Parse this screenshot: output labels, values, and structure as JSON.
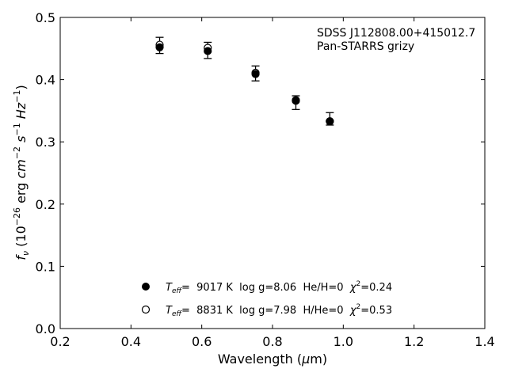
{
  "chart_data": {
    "type": "scatter",
    "xlabel": "Wavelength (μm)",
    "ylabel": "f_ν (10^-26 erg cm^-2 s^-1 Hz^-1)",
    "xlim": [
      0.2,
      1.4
    ],
    "ylim": [
      0.0,
      0.5
    ],
    "xticks": [
      "0.2",
      "0.4",
      "0.6",
      "0.8",
      "1.0",
      "1.2",
      "1.4"
    ],
    "yticks": [
      "0.0",
      "0.1",
      "0.2",
      "0.3",
      "0.4",
      "0.5"
    ],
    "grid": false,
    "annotation": [
      "SDSS J112808.00+415012.7",
      "Pan-STARRS grizy"
    ],
    "observed": {
      "x": [
        0.481,
        0.617,
        0.752,
        0.866,
        0.962
      ],
      "y": [
        0.455,
        0.447,
        0.41,
        0.363,
        0.337
      ],
      "err": [
        0.013,
        0.013,
        0.012,
        0.011,
        0.01
      ]
    },
    "series": [
      {
        "name": "Teff= 9017 K log g=8.06 He/H=0 χ2=0.24",
        "marker": "filled-circle",
        "x": [
          0.481,
          0.617,
          0.752,
          0.866,
          0.962
        ],
        "y": [
          0.452,
          0.446,
          0.409,
          0.366,
          0.333
        ]
      },
      {
        "name": "Teff= 8831 K log g=7.98 H/He=0 χ2=0.53",
        "marker": "open-circle",
        "x": [
          0.481,
          0.617,
          0.752,
          0.866,
          0.962
        ],
        "y": [
          0.456,
          0.451,
          0.411,
          0.367,
          0.333
        ]
      }
    ],
    "legend": {
      "placement": "lower-center",
      "entries": [
        {
          "teff_label": "T",
          "teff_sub": "eff",
          "teff_value": "=  9017 K  log g=8.06  He/H=0  ",
          "chi_label": "χ",
          "chi_sup": "2",
          "chi_value": "=0.24"
        },
        {
          "teff_label": "T",
          "teff_sub": "eff",
          "teff_value": "=  8831 K  log g=7.98  H/He=0  ",
          "chi_label": "χ",
          "chi_sup": "2",
          "chi_value": "=0.53"
        }
      ]
    }
  }
}
